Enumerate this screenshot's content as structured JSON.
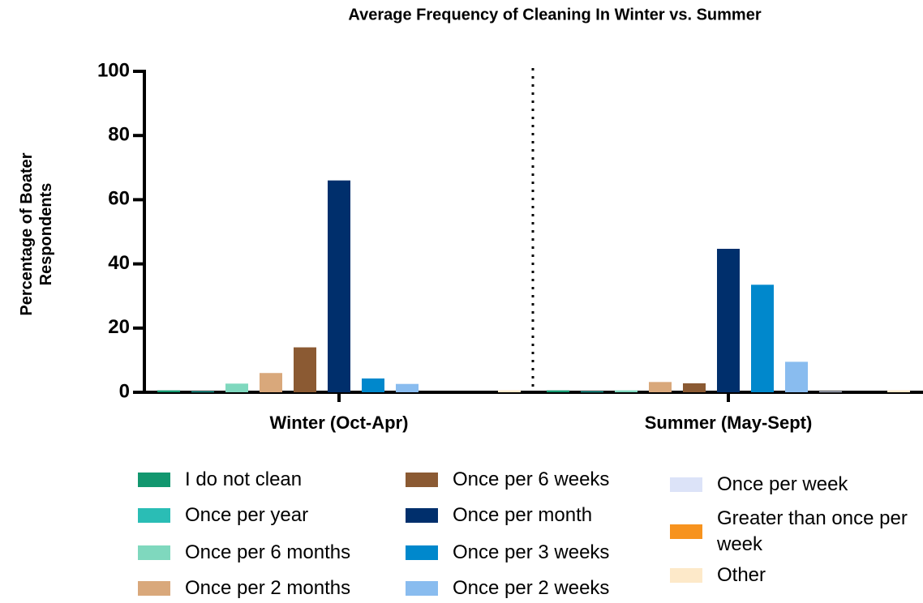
{
  "chart_data": {
    "type": "bar",
    "title": "Average Frequency of Cleaning In Winter vs. Summer",
    "y_label": "Percentage of Boater Respondents",
    "categories": [
      "Winter (Oct-Apr)",
      "Summer (May-Sept)"
    ],
    "series": [
      {
        "name": "I do not clean",
        "color": "#12976F",
        "values": [
          0.6,
          0.6
        ]
      },
      {
        "name": "Once per year",
        "color": "#2ABDB5",
        "values": [
          0.3,
          0.3
        ]
      },
      {
        "name": "Once per 6 months",
        "color": "#7FD8BE",
        "values": [
          2.7,
          0.6
        ]
      },
      {
        "name": "Once per 2 months",
        "color": "#D9A87B",
        "values": [
          6,
          3.2
        ]
      },
      {
        "name": "Once per 6 weeks",
        "color": "#8B5A33",
        "values": [
          14,
          2.8
        ]
      },
      {
        "name": "Once per month",
        "color": "#002F6C",
        "values": [
          66,
          44.7
        ]
      },
      {
        "name": "Once per 3 weeks",
        "color": "#0088CC",
        "values": [
          4.3,
          33.5
        ]
      },
      {
        "name": "Once per 2 weeks",
        "color": "#89BCEF",
        "values": [
          2.6,
          9.5
        ]
      },
      {
        "name": "Once per week",
        "color": "#DCE3F8",
        "values": [
          0,
          0.3
        ]
      },
      {
        "name": "Greater than once per week",
        "color": "#F7931E",
        "values": [
          0,
          0
        ]
      },
      {
        "name": "Other",
        "color": "#FDE9C9",
        "values": [
          0.6,
          0.6
        ]
      }
    ],
    "ylim": [
      0,
      100
    ],
    "yticks": [
      0,
      20,
      40,
      60,
      80,
      100
    ]
  }
}
